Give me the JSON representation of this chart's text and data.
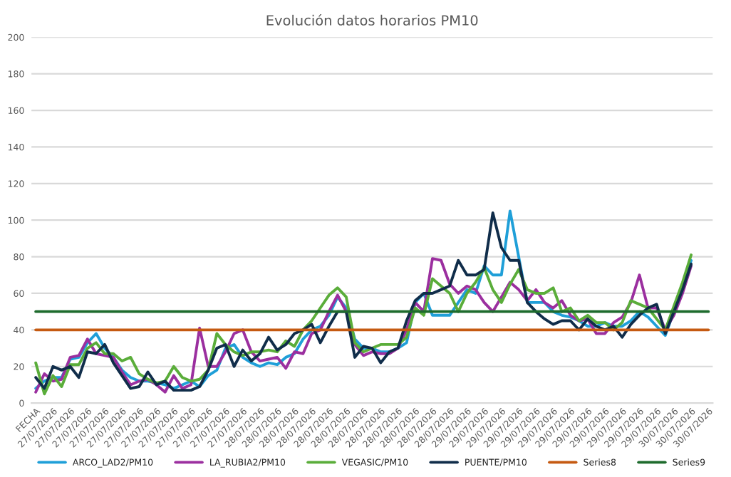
{
  "chart_data": {
    "type": "line",
    "title": "Evolución datos horarios PM10",
    "categories": [
      "FECHA",
      null,
      "27/07/2026",
      null,
      "27/07/2026",
      null,
      "27/07/2026",
      null,
      "27/07/2026",
      null,
      "27/07/2026",
      null,
      "27/07/2026",
      null,
      "27/07/2026",
      null,
      "27/07/2026",
      null,
      "27/07/2026",
      null,
      "27/07/2026",
      null,
      "27/07/2026",
      null,
      "27/07/2026",
      null,
      "28/07/2026",
      null,
      "28/07/2026",
      null,
      "28/07/2026",
      null,
      "28/07/2026",
      null,
      "28/07/2026",
      null,
      "28/07/2026",
      null,
      "28/07/2026",
      null,
      "28/07/2026",
      null,
      "28/07/2026",
      null,
      "28/07/2026",
      null,
      "28/07/2026",
      null,
      "28/07/2026",
      null,
      "29/07/2026",
      null,
      "29/07/2026",
      null,
      "29/07/2026",
      null,
      "29/07/2026",
      null,
      "29/07/2026",
      null,
      "29/07/2026",
      null,
      "29/07/2026",
      null,
      "29/07/2026",
      null,
      "29/07/2026",
      null,
      "29/07/2026",
      null,
      "29/07/2026",
      null,
      "29/07/2026",
      null,
      "30/07/2026",
      null,
      "30/07/2026",
      null,
      "30/07/2026"
    ],
    "series": [
      {
        "name": "ARCO_LAD2/PM10",
        "color": "#1f9fd8",
        "values": [
          8,
          12,
          14,
          14,
          24,
          25,
          33,
          38,
          30,
          25,
          18,
          14,
          12,
          12,
          11,
          10,
          8,
          10,
          12,
          9,
          15,
          18,
          30,
          32,
          25,
          22,
          20,
          22,
          21,
          25,
          27,
          35,
          40,
          42,
          48,
          58,
          52,
          35,
          30,
          30,
          28,
          28,
          30,
          33,
          55,
          60,
          48,
          48,
          48,
          55,
          62,
          60,
          75,
          70,
          70,
          105,
          80,
          55,
          55,
          55,
          50,
          48,
          47,
          45,
          42,
          42,
          44,
          42,
          42,
          45,
          50,
          47,
          42,
          37,
          50,
          63,
          78,
          null,
          null
        ]
      },
      {
        "name": "LA_RUBIA2/PM10",
        "color": "#9b2f9f",
        "values": [
          6,
          16,
          12,
          13,
          25,
          26,
          35,
          27,
          26,
          25,
          17,
          10,
          12,
          13,
          10,
          6,
          15,
          8,
          10,
          41,
          20,
          20,
          28,
          38,
          40,
          28,
          23,
          24,
          25,
          19,
          28,
          27,
          38,
          40,
          50,
          59,
          50,
          32,
          26,
          28,
          27,
          27,
          30,
          40,
          55,
          50,
          79,
          78,
          65,
          60,
          64,
          62,
          55,
          50,
          58,
          66,
          62,
          56,
          62,
          55,
          52,
          56,
          48,
          45,
          46,
          38,
          38,
          44,
          47,
          55,
          70,
          52,
          52,
          40,
          48,
          60,
          75,
          null,
          null
        ]
      },
      {
        "name": "VEGASIC/PM10",
        "color": "#5aad3a",
        "values": [
          22,
          5,
          15,
          9,
          21,
          21,
          30,
          33,
          27,
          27,
          23,
          25,
          16,
          13,
          11,
          12,
          20,
          14,
          12,
          13,
          18,
          38,
          32,
          28,
          26,
          28,
          28,
          29,
          28,
          34,
          31,
          40,
          45,
          52,
          59,
          63,
          58,
          33,
          28,
          30,
          32,
          32,
          32,
          36,
          52,
          48,
          68,
          64,
          60,
          50,
          60,
          66,
          74,
          62,
          55,
          65,
          73,
          62,
          60,
          60,
          63,
          50,
          52,
          45,
          48,
          44,
          44,
          40,
          44,
          56,
          54,
          52,
          46,
          40,
          53,
          66,
          81,
          null,
          null
        ]
      },
      {
        "name": "PUENTE/PM10",
        "color": "#102d4a",
        "values": [
          14,
          8,
          20,
          18,
          20,
          14,
          28,
          27,
          32,
          22,
          15,
          8,
          9,
          17,
          10,
          12,
          7,
          7,
          7,
          9,
          18,
          30,
          32,
          20,
          29,
          23,
          27,
          36,
          29,
          32,
          38,
          40,
          43,
          33,
          42,
          50,
          50,
          25,
          31,
          30,
          22,
          28,
          30,
          45,
          56,
          60,
          60,
          62,
          64,
          78,
          70,
          70,
          73,
          104,
          85,
          78,
          78,
          55,
          50,
          46,
          43,
          45,
          45,
          40,
          46,
          42,
          40,
          42,
          36,
          43,
          48,
          52,
          54,
          38,
          50,
          62,
          76,
          null,
          null
        ]
      },
      {
        "name": "Series8",
        "color": "#c55a11",
        "values": [
          40,
          40,
          40,
          40,
          40,
          40,
          40,
          40,
          40,
          40,
          40,
          40,
          40,
          40,
          40,
          40,
          40,
          40,
          40,
          40,
          40,
          40,
          40,
          40,
          40,
          40,
          40,
          40,
          40,
          40,
          40,
          40,
          40,
          40,
          40,
          40,
          40,
          40,
          40,
          40,
          40,
          40,
          40,
          40,
          40,
          40,
          40,
          40,
          40,
          40,
          40,
          40,
          40,
          40,
          40,
          40,
          40,
          40,
          40,
          40,
          40,
          40,
          40,
          40,
          40,
          40,
          40,
          40,
          40,
          40,
          40,
          40,
          40,
          40,
          40,
          40,
          40,
          40,
          40
        ]
      },
      {
        "name": "Series9",
        "color": "#1e6b2d",
        "values": [
          50,
          50,
          50,
          50,
          50,
          50,
          50,
          50,
          50,
          50,
          50,
          50,
          50,
          50,
          50,
          50,
          50,
          50,
          50,
          50,
          50,
          50,
          50,
          50,
          50,
          50,
          50,
          50,
          50,
          50,
          50,
          50,
          50,
          50,
          50,
          50,
          50,
          50,
          50,
          50,
          50,
          50,
          50,
          50,
          50,
          50,
          50,
          50,
          50,
          50,
          50,
          50,
          50,
          50,
          50,
          50,
          50,
          50,
          50,
          50,
          50,
          50,
          50,
          50,
          50,
          50,
          50,
          50,
          50,
          50,
          50,
          50,
          50,
          50,
          50,
          50,
          50,
          50,
          50
        ]
      }
    ],
    "ylim": [
      0,
      200
    ],
    "yticks": [
      0,
      20,
      40,
      60,
      80,
      100,
      120,
      140,
      160,
      180,
      200
    ],
    "grid": "y",
    "legend": "bottom",
    "marker": "none",
    "line_style": "solid"
  }
}
